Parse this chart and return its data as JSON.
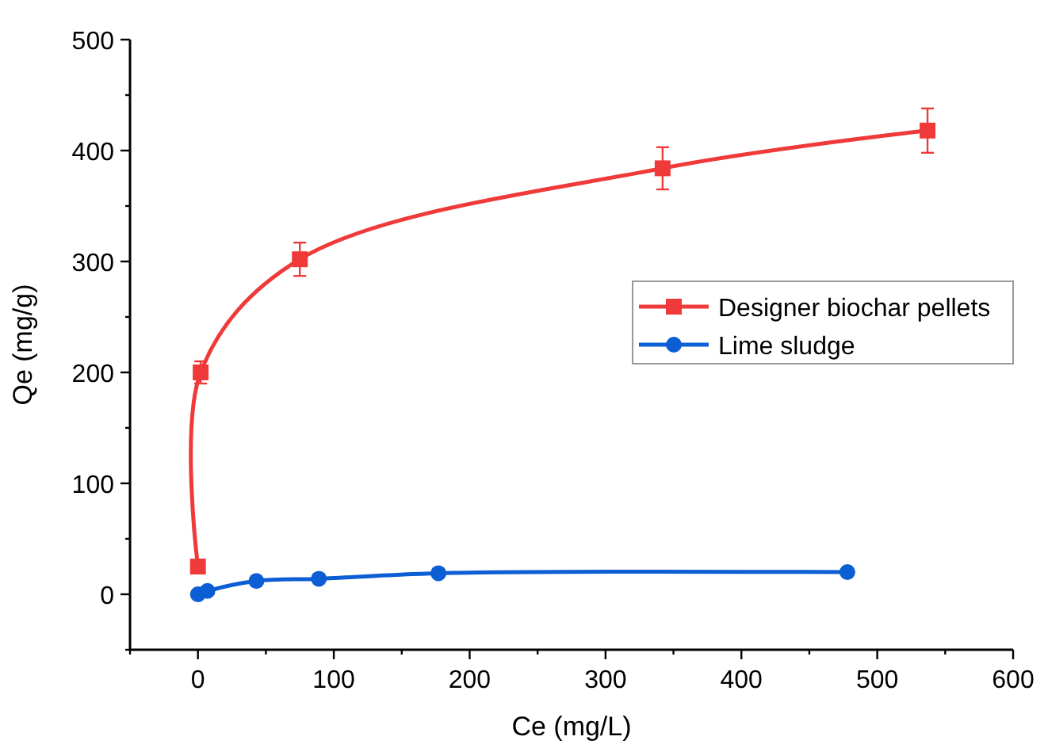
{
  "chart_data": {
    "type": "line",
    "xlabel": "Ce (mg/L)",
    "ylabel": "Qe (mg/g)",
    "xlim": [
      -50,
      600
    ],
    "xticks": [
      {
        "value": -50,
        "label": null
      },
      0,
      {
        "value": 50,
        "label": null
      },
      100,
      {
        "value": 150,
        "label": null
      },
      200,
      {
        "value": 250,
        "label": null
      },
      300,
      {
        "value": 350,
        "label": null
      },
      400,
      {
        "value": 450,
        "label": null
      },
      500,
      {
        "value": 550,
        "label": null
      },
      600
    ],
    "ylim": [
      -50,
      500
    ],
    "yticks": [
      {
        "value": -50,
        "label": null
      },
      0,
      {
        "value": 50,
        "label": null
      },
      100,
      {
        "value": 150,
        "label": null
      },
      200,
      {
        "value": 250,
        "label": null
      },
      300,
      {
        "value": 350,
        "label": null
      },
      400,
      {
        "value": 450,
        "label": null
      },
      500
    ],
    "legend": "right",
    "grid": false,
    "line_style": "solid",
    "series": [
      {
        "name": "Designer biochar pellets",
        "color": "#f03a3a",
        "marker": "square",
        "x": [
          0,
          2,
          75,
          342,
          537
        ],
        "values": [
          25,
          200,
          302,
          384,
          418
        ],
        "errors": [
          null,
          10,
          15,
          19,
          20
        ]
      },
      {
        "name": "Lime sludge",
        "color": "#0b5ed3",
        "marker": "circle",
        "x": [
          0,
          7,
          43,
          89,
          177,
          478
        ],
        "values": [
          0,
          3,
          12,
          14,
          19,
          20
        ]
      }
    ]
  }
}
